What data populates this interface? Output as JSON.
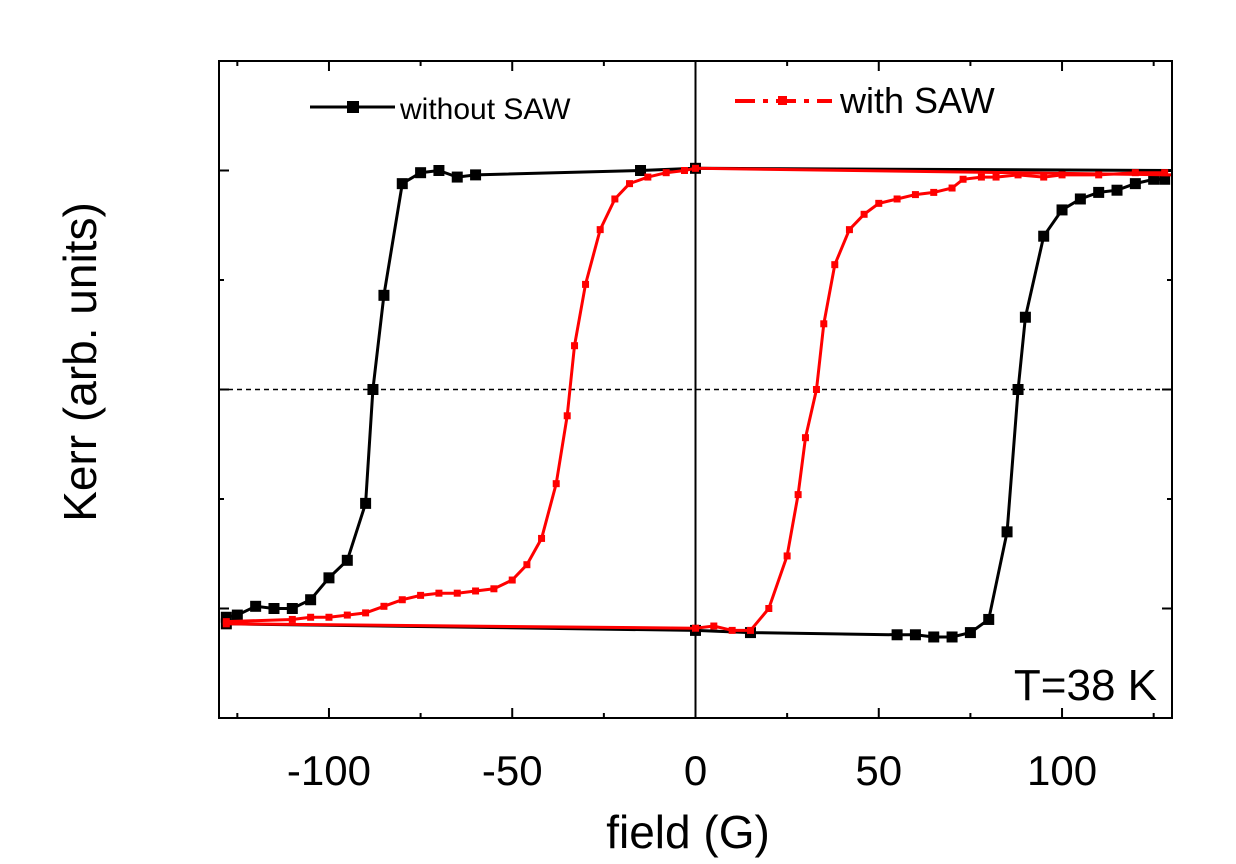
{
  "chart_data": {
    "type": "line",
    "xlabel": "field (G)",
    "ylabel": "Kerr (arb. units)",
    "xlim": [
      -130,
      130
    ],
    "ylim": [
      -1.5,
      1.5
    ],
    "x_ticks": [
      -100,
      -50,
      0,
      50,
      100
    ],
    "x_tick_labels": [
      "-100",
      "-50",
      "0",
      "50",
      "100"
    ],
    "y_ticks_major": [
      -1,
      0,
      1
    ],
    "reference_lines": [
      {
        "axis": "y",
        "value": 0,
        "style": "dashed"
      },
      {
        "axis": "x",
        "value": 0,
        "style": "solid"
      }
    ],
    "annotation": "T=38 K",
    "grid": false,
    "legend_position": "top",
    "series": [
      {
        "name": "without SAW",
        "color": "#000000",
        "marker": "square",
        "sweep_down": [
          [
            130,
            1.0
          ],
          [
            0,
            1.01
          ],
          [
            -15,
            1.0
          ],
          [
            -60,
            0.98
          ],
          [
            -65,
            0.97
          ],
          [
            -70,
            1.0
          ],
          [
            -75,
            0.99
          ],
          [
            -80,
            0.94
          ],
          [
            -85,
            0.43
          ],
          [
            -88,
            0.0
          ],
          [
            -90,
            -0.52
          ],
          [
            -95,
            -0.78
          ],
          [
            -100,
            -0.86
          ],
          [
            -105,
            -0.96
          ],
          [
            -110,
            -1.0
          ],
          [
            -115,
            -1.0
          ],
          [
            -120,
            -0.99
          ],
          [
            -125,
            -1.03
          ],
          [
            -128,
            -1.04
          ]
        ],
        "sweep_up": [
          [
            -128,
            -1.07
          ],
          [
            0,
            -1.1
          ],
          [
            15,
            -1.11
          ],
          [
            55,
            -1.12
          ],
          [
            60,
            -1.12
          ],
          [
            65,
            -1.13
          ],
          [
            70,
            -1.13
          ],
          [
            75,
            -1.11
          ],
          [
            80,
            -1.05
          ],
          [
            85,
            -0.65
          ],
          [
            88,
            0.0
          ],
          [
            90,
            0.33
          ],
          [
            95,
            0.7
          ],
          [
            100,
            0.82
          ],
          [
            105,
            0.87
          ],
          [
            110,
            0.9
          ],
          [
            115,
            0.91
          ],
          [
            120,
            0.94
          ],
          [
            125,
            0.96
          ],
          [
            128,
            0.96
          ]
        ]
      },
      {
        "name": "with SAW",
        "color": "#ff0000",
        "marker": "square",
        "sweep_down": [
          [
            130,
            0.98
          ],
          [
            0,
            1.01
          ],
          [
            -3,
            1.0
          ],
          [
            -8,
            0.99
          ],
          [
            -13,
            0.97
          ],
          [
            -18,
            0.94
          ],
          [
            -22,
            0.87
          ],
          [
            -26,
            0.73
          ],
          [
            -30,
            0.48
          ],
          [
            -33,
            0.2
          ],
          [
            -35,
            -0.12
          ],
          [
            -38,
            -0.43
          ],
          [
            -42,
            -0.68
          ],
          [
            -46,
            -0.8
          ],
          [
            -50,
            -0.87
          ],
          [
            -55,
            -0.91
          ],
          [
            -60,
            -0.92
          ],
          [
            -65,
            -0.93
          ],
          [
            -70,
            -0.93
          ],
          [
            -75,
            -0.94
          ],
          [
            -80,
            -0.96
          ],
          [
            -85,
            -0.99
          ],
          [
            -90,
            -1.02
          ],
          [
            -95,
            -1.03
          ],
          [
            -100,
            -1.04
          ],
          [
            -105,
            -1.04
          ],
          [
            -110,
            -1.05
          ],
          [
            -128,
            -1.06
          ]
        ],
        "sweep_up": [
          [
            -128,
            -1.07
          ],
          [
            0,
            -1.09
          ],
          [
            5,
            -1.08
          ],
          [
            10,
            -1.1
          ],
          [
            15,
            -1.1
          ],
          [
            20,
            -1.0
          ],
          [
            25,
            -0.76
          ],
          [
            28,
            -0.48
          ],
          [
            30,
            -0.22
          ],
          [
            33,
            0.0
          ],
          [
            35,
            0.3
          ],
          [
            38,
            0.57
          ],
          [
            42,
            0.73
          ],
          [
            46,
            0.8
          ],
          [
            50,
            0.85
          ],
          [
            55,
            0.87
          ],
          [
            60,
            0.89
          ],
          [
            65,
            0.9
          ],
          [
            70,
            0.92
          ],
          [
            73,
            0.96
          ],
          [
            78,
            0.97
          ],
          [
            82,
            0.97
          ],
          [
            88,
            0.98
          ],
          [
            95,
            0.97
          ],
          [
            100,
            0.98
          ],
          [
            110,
            0.98
          ],
          [
            120,
            0.99
          ],
          [
            128,
            0.99
          ]
        ]
      }
    ]
  }
}
